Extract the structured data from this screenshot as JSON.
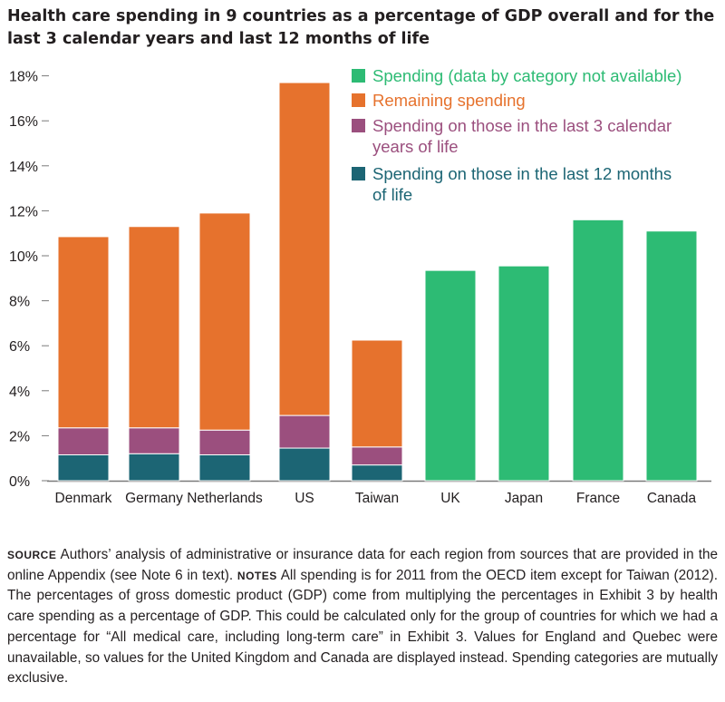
{
  "title": "Health care spending in 9 countries as a percentage of GDP overall and for the last 3 calendar years and last 12 months of life",
  "colors": {
    "spending_na": "#2dbb74",
    "remaining": "#e6722d",
    "last3": "#9b4f7e",
    "last12": "#1c6574",
    "axis": "#7a7a7a",
    "text": "#231f20"
  },
  "chart_data": {
    "type": "bar",
    "stacked": true,
    "title": "Health care spending in 9 countries as a percentage of GDP overall and for the last 3 calendar years and last 12 months of life",
    "xlabel": "",
    "ylabel": "",
    "ylim": [
      0,
      18
    ],
    "yticks": [
      "0%",
      "2%",
      "4%",
      "6%",
      "8%",
      "10%",
      "12%",
      "14%",
      "16%",
      "18%"
    ],
    "categories": [
      "Denmark",
      "Germany",
      "Netherlands",
      "US",
      "Taiwan",
      "UK",
      "Japan",
      "France",
      "Canada"
    ],
    "legend_position": "top-right",
    "grid": false,
    "series": [
      {
        "name": "Spending on those in the last 12 months of life",
        "color": "#1c6574",
        "values": [
          1.15,
          1.2,
          1.15,
          1.45,
          0.7,
          null,
          null,
          null,
          null
        ]
      },
      {
        "name": "Spending on those in the last 3 calendar years of life",
        "color": "#9b4f7e",
        "values": [
          1.2,
          1.15,
          1.1,
          1.45,
          0.8,
          null,
          null,
          null,
          null
        ]
      },
      {
        "name": "Remaining spending",
        "color": "#e6722d",
        "values": [
          8.5,
          8.95,
          9.65,
          14.8,
          4.75,
          null,
          null,
          null,
          null
        ]
      },
      {
        "name": "Spending (data by category not available)",
        "color": "#2dbb74",
        "values": [
          null,
          null,
          null,
          null,
          null,
          9.35,
          9.55,
          11.6,
          11.1
        ]
      }
    ],
    "legend": [
      {
        "lines": [
          "Spending (data by category not available)"
        ],
        "color": "#2dbb74"
      },
      {
        "lines": [
          "Remaining spending"
        ],
        "color": "#e6722d"
      },
      {
        "lines": [
          "Spending on those in the last 3 calendar",
          "years of life"
        ],
        "color": "#9b4f7e"
      },
      {
        "lines": [
          "Spending on those in the last 12 months",
          "of life"
        ],
        "color": "#1c6574"
      }
    ]
  },
  "footnote": {
    "source_label": "SOURCE",
    "source_text": " Authors’ analysis of administrative or insurance data for each region from sources that are provided in the online Appendix (see Note 6 in text). ",
    "notes_label": "NOTES",
    "notes_text": " All spending is for 2011 from the OECD item except for Taiwan (2012). The percentages of gross domestic product (GDP) come from multiplying the percentages in Exhibit 3 by health care spending as a percentage of GDP. This could be calculated only for the group of countries for which we had a percentage for “All medical care, including long-term care” in Exhibit 3. Values for England and Quebec were unavailable, so values for the United Kingdom and Canada are displayed instead. Spending categories are mutually exclusive."
  }
}
